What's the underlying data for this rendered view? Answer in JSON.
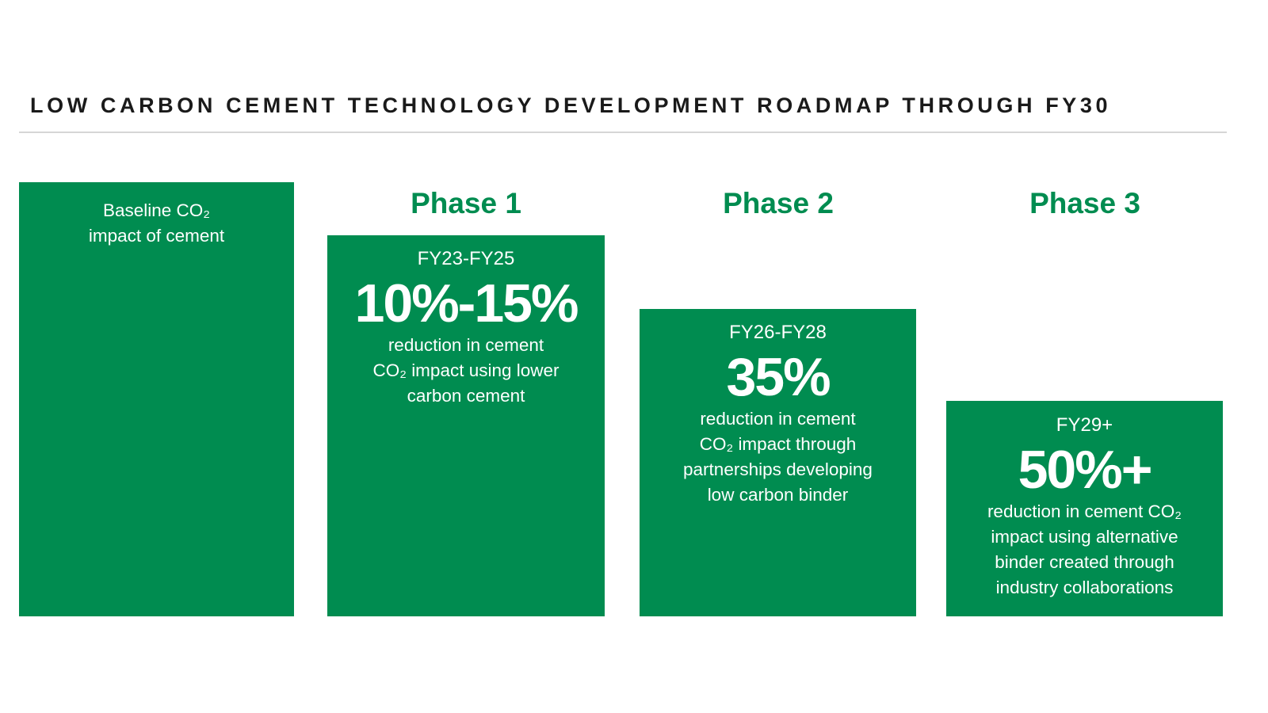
{
  "title": "LOW CARBON CEMENT TECHNOLOGY DEVELOPMENT ROADMAP THROUGH FY30",
  "colors": {
    "accent": "#008c50",
    "title": "#1a1a1a",
    "rule": "#d6d6d6"
  },
  "baseline": {
    "text": "Baseline CO₂\nimpact of cement"
  },
  "phases": [
    {
      "heading": "Phase 1",
      "period": "FY23-FY25",
      "value": "10%-15%",
      "description": "reduction in cement\nCO₂ impact using lower\ncarbon cement"
    },
    {
      "heading": "Phase 2",
      "period": "FY26-FY28",
      "value": "35%",
      "description": "reduction in cement\nCO₂ impact through\npartnerships developing\nlow carbon binder"
    },
    {
      "heading": "Phase 3",
      "period": "FY29+",
      "value": "50%+",
      "description": "reduction in cement CO₂\nimpact using alternative\nbinder created through\nindustry collaborations"
    }
  ]
}
